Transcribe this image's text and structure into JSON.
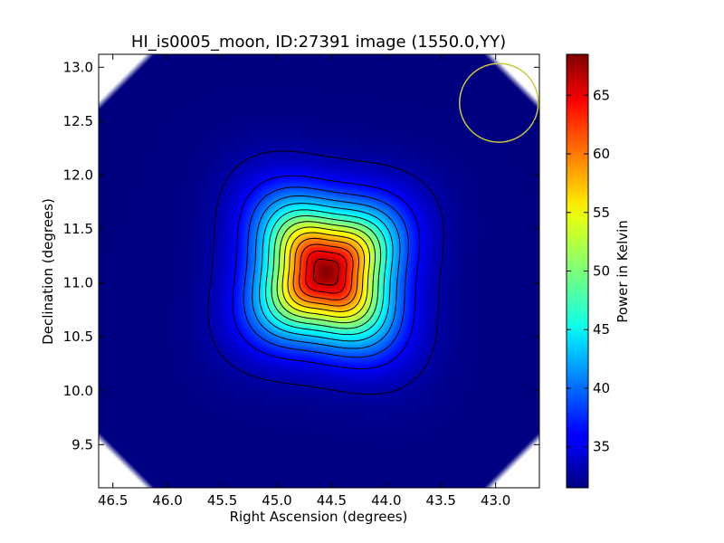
{
  "chart_data": {
    "type": "heatmap",
    "title": "HI_is0005_moon, ID:27391 image (1550.0,YY)",
    "xlabel": "Right Ascension (degrees)",
    "ylabel": "Declination (degrees)",
    "colorbar_label": "Power in Kelvin",
    "xlim": [
      46.63,
      42.6
    ],
    "ylim": [
      9.1,
      13.12
    ],
    "x_ticks": [
      46.5,
      46.0,
      45.5,
      45.0,
      44.5,
      44.0,
      43.5,
      43.0
    ],
    "x_tick_labels": [
      "46.5",
      "46.0",
      "45.5",
      "45.0",
      "44.5",
      "44.0",
      "43.5",
      "43.0"
    ],
    "y_ticks": [
      9.5,
      10.0,
      10.5,
      11.0,
      11.5,
      12.0,
      12.5,
      13.0
    ],
    "y_tick_labels": [
      "9.5",
      "10.0",
      "10.5",
      "11.0",
      "11.5",
      "12.0",
      "12.5",
      "13.0"
    ],
    "colorbar_range": [
      31.5,
      68.5
    ],
    "colorbar_ticks": [
      35,
      40,
      45,
      50,
      55,
      60,
      65
    ],
    "colorbar_tick_labels": [
      "35",
      "40",
      "45",
      "50",
      "55",
      "60",
      "65"
    ],
    "colormap": "jet",
    "source": {
      "ra": 44.55,
      "dec": 11.1,
      "peak": 68.5,
      "background": 31.5
    },
    "contour_levels": [
      33,
      36,
      38.5,
      41,
      43.5,
      46,
      48.5,
      51,
      53.5,
      56,
      58.5,
      61,
      63.5,
      66
    ],
    "beam_circle": {
      "ra": 42.97,
      "dec": 12.67,
      "radius_deg": 0.36,
      "color": "#c8c83c"
    },
    "grid": false,
    "legend": "none"
  }
}
